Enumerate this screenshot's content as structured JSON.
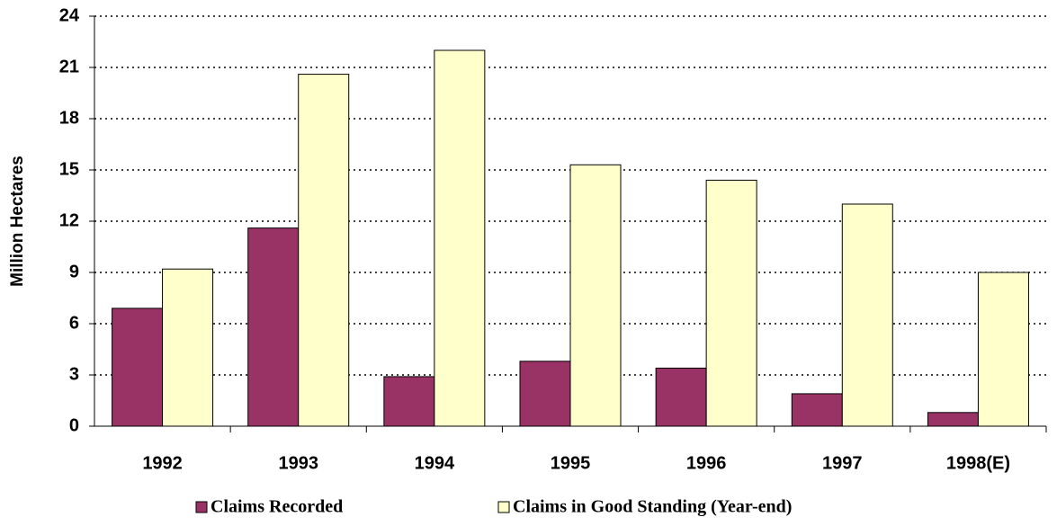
{
  "chart_data": {
    "type": "bar",
    "y_label": "Million Hectares",
    "categories": [
      "1992",
      "1993",
      "1994",
      "1995",
      "1996",
      "1997",
      "1998(E)"
    ],
    "series": [
      {
        "name": "Claims Recorded",
        "color": "#993366",
        "values": [
          6.9,
          11.6,
          2.9,
          3.8,
          3.4,
          1.9,
          0.8
        ]
      },
      {
        "name": "Claims in Good Standing (Year-end)",
        "color": "#ffffcc",
        "values": [
          9.2,
          20.6,
          22.0,
          15.3,
          14.4,
          13.0,
          9.0
        ]
      }
    ],
    "ylim": [
      0,
      24
    ],
    "yticks": [
      0,
      3,
      6,
      9,
      12,
      15,
      18,
      21,
      24
    ],
    "grid": true,
    "legend": "bottom"
  }
}
